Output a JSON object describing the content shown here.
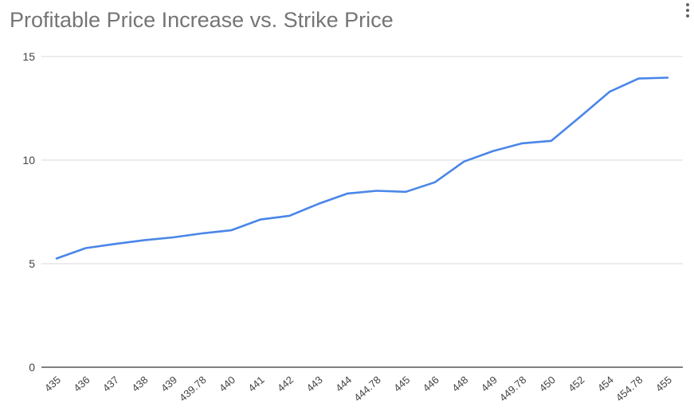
{
  "chart": {
    "title": "Profitable Price Increase vs. Strike Price",
    "menu_icon": "more-vert-icon"
  },
  "colors": {
    "series": "#4a86e8",
    "grid": "#d9d9d9",
    "axis": "#333333",
    "text": "#444444"
  },
  "chart_data": {
    "type": "line",
    "title": "Profitable Price Increase vs. Strike Price",
    "xlabel": "",
    "ylabel": "",
    "ylim": [
      0,
      15
    ],
    "yticks": [
      0,
      5,
      10,
      15
    ],
    "grid": true,
    "categories": [
      "435",
      "436",
      "437",
      "438",
      "439",
      "439.78",
      "440",
      "441",
      "442",
      "443",
      "444",
      "444.78",
      "445",
      "446",
      "448",
      "449",
      "449.78",
      "450",
      "452",
      "454",
      "454.78",
      "455"
    ],
    "series": [
      {
        "values": [
          5.25,
          5.75,
          5.95,
          6.13,
          6.27,
          6.46,
          6.61,
          7.13,
          7.31,
          7.89,
          8.39,
          8.52,
          8.47,
          8.93,
          9.93,
          10.44,
          10.81,
          10.93,
          12.1,
          13.3,
          13.94,
          13.98
        ]
      }
    ]
  }
}
